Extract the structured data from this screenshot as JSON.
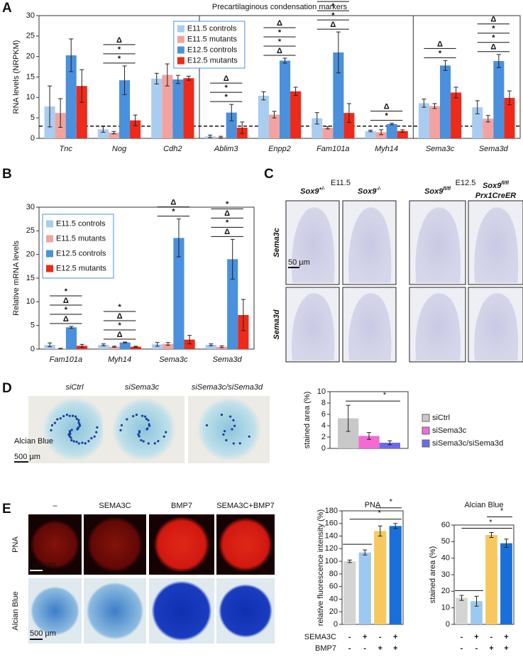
{
  "chart_data": [
    {
      "type": "bar",
      "title": "Precartilaginous condensation markers",
      "y_label": "RNA levels (NRPKM)",
      "categories": [
        "Tnc",
        "Nog",
        "Cdh2",
        "Ablim3",
        "Enpp2",
        "Fam101a",
        "Myh14",
        "Sema3c",
        "Sema3d"
      ],
      "series": [
        {
          "name": "E11.5 controls",
          "color": "#a9cdf0",
          "values": [
            7.8,
            2.2,
            14.6,
            0.5,
            10.4,
            4.9,
            1.8,
            8.6,
            7.6
          ],
          "errors": [
            5,
            0.7,
            1.3,
            0.3,
            1,
            1.4,
            0.2,
            1,
            1.6
          ]
        },
        {
          "name": "E11.5 mutants",
          "color": "#f2a3a0",
          "values": [
            6.2,
            1.4,
            15.5,
            0.3,
            5.8,
            2.6,
            1.5,
            7.9,
            4.8
          ],
          "errors": [
            3.5,
            0.3,
            2.7,
            0.2,
            0.8,
            0.3,
            0.6,
            0.6,
            0.8
          ]
        },
        {
          "name": "E12.5 controls",
          "color": "#4a90dc",
          "values": [
            20.3,
            14.2,
            14.4,
            6.3,
            19,
            21,
            3.5,
            17.8,
            18.9
          ],
          "errors": [
            4,
            3.5,
            1,
            2,
            0.6,
            5,
            0.2,
            1.2,
            1.6
          ]
        },
        {
          "name": "E12.5 mutants",
          "color": "#ee2a1a",
          "values": [
            12.8,
            4.4,
            14.7,
            2.6,
            11.5,
            6.2,
            1.8,
            11.2,
            9.9
          ],
          "errors": [
            4,
            1.3,
            0.5,
            1.4,
            1,
            2.3,
            0.3,
            1.3,
            1.7
          ]
        }
      ],
      "ylim": [
        0,
        30
      ],
      "yticks": [
        0,
        5,
        10,
        15,
        20,
        25,
        30
      ],
      "reference_line": 3,
      "legend": "upper center",
      "significance": [
        [],
        [
          "*",
          "*",
          "Δ"
        ],
        [],
        [
          "*",
          "*",
          "Δ"
        ],
        [
          "Δ",
          "*",
          "*",
          "Δ"
        ],
        [
          "Δ",
          "*",
          "*",
          "Δ"
        ],
        [
          "*",
          "Δ"
        ],
        [
          "*",
          "Δ"
        ],
        [
          "Δ",
          "*",
          "*",
          "Δ"
        ]
      ]
    },
    {
      "type": "bar",
      "y_label": "Relative mRNA levels",
      "categories": [
        "Fam101a",
        "Myh14",
        "Sema3c",
        "Sema3d"
      ],
      "series": [
        {
          "name": "E11.5 controls",
          "color": "#a9cdf0",
          "values": [
            0.9,
            0.9,
            1,
            0.9
          ],
          "errors": [
            0.4,
            0.2,
            0.4,
            0.2
          ]
        },
        {
          "name": "E11.5 mutants",
          "color": "#f2a3a0",
          "values": [
            0.1,
            0.5,
            1.1,
            0.5
          ],
          "errors": [
            0.05,
            0.1,
            0.3,
            0.2
          ]
        },
        {
          "name": "E12.5 controls",
          "color": "#4a90dc",
          "values": [
            4.6,
            1.4,
            23.5,
            19
          ],
          "errors": [
            0.2,
            0.1,
            4,
            4.2
          ]
        },
        {
          "name": "E12.5 mutants",
          "color": "#ee2a1a",
          "values": [
            0.7,
            0.5,
            2,
            7.2
          ],
          "errors": [
            0.3,
            0.1,
            0.9,
            3.3
          ]
        }
      ],
      "ylim": [
        0,
        30
      ],
      "yticks": [
        0,
        5,
        10,
        15,
        20,
        25,
        30
      ],
      "legend": "upper left",
      "significance": [
        [
          "Δ",
          "*",
          "Δ",
          "*"
        ],
        [
          "Δ",
          "*",
          "Δ",
          "*"
        ],
        [
          "*",
          "Δ"
        ],
        [
          "Δ",
          "*",
          "Δ",
          "*"
        ]
      ]
    },
    {
      "type": "bar",
      "y_label": "stained area (%)",
      "categories": [
        null
      ],
      "series": [
        {
          "name": "siCtrl",
          "color": "#c8c8c8",
          "values": [
            5.3
          ],
          "errors": [
            2.3
          ]
        },
        {
          "name": "siSema3c",
          "color": "#f26ad2",
          "values": [
            2.2
          ],
          "errors": [
            0.6
          ]
        },
        {
          "name": "siSema3c/siSema3d",
          "color": "#6a6aee",
          "values": [
            1.0
          ],
          "errors": [
            0.35
          ]
        }
      ],
      "ylim": [
        0,
        10
      ],
      "yticks": [
        0,
        2,
        4,
        6,
        8,
        10
      ],
      "legend": "right",
      "significance": [
        "*"
      ]
    },
    {
      "type": "bar",
      "title": "PNA",
      "y_label": "relative fluorescence intensity (%)",
      "categories": [
        null,
        null,
        null,
        null
      ],
      "values": [
        100,
        114,
        148,
        156
      ],
      "errors": [
        2,
        4,
        8,
        4
      ],
      "colors": [
        "#d4d4d4",
        "#9dc8f0",
        "#f8c860",
        "#1a70d8"
      ],
      "ylim": [
        0,
        180
      ],
      "yticks": [
        0,
        20,
        40,
        60,
        80,
        100,
        120,
        140,
        160,
        180
      ],
      "significance": [
        "*",
        "*"
      ]
    },
    {
      "type": "bar",
      "title": "Alcian Blue",
      "y_label": "stained area (%)",
      "categories": [
        null,
        null,
        null,
        null
      ],
      "values": [
        16,
        14,
        54,
        49
      ],
      "errors": [
        1.5,
        3,
        1.5,
        2.5
      ],
      "colors": [
        "#d4d4d4",
        "#9dc8f0",
        "#f8c860",
        "#1a70d8"
      ],
      "ylim": [
        0,
        60
      ],
      "yticks": [
        0,
        10,
        20,
        30,
        40,
        50,
        60
      ],
      "significance": [
        "*",
        "*"
      ]
    }
  ],
  "figure": {
    "panel_letters": [
      "A",
      "B",
      "C",
      "D",
      "E"
    ],
    "panel_c": {
      "stages": [
        "E11.5",
        "E12.5"
      ],
      "genotypes": [
        {
          "gene": "Sox9",
          "allele": "+/-"
        },
        {
          "gene": "Sox9",
          "allele": "-/-"
        },
        {
          "gene": "Sox9",
          "allele": "fl/fl"
        },
        {
          "gene": "Sox9",
          "allele": "fl/fl",
          "driver": "Prx1CreER"
        }
      ],
      "rows": [
        "Sema3c",
        "Sema3d"
      ],
      "scale_bar": "50 µm"
    },
    "panel_d": {
      "conditions": [
        "siCtrl",
        "siSema3c",
        "siSema3c/siSema3d"
      ],
      "row_label": "Alcian Blue",
      "scale_bar": "500 µm"
    },
    "panel_e": {
      "conditions": [
        "–",
        "SEMA3C",
        "BMP7",
        "SEMA3C+BMP7"
      ],
      "rows": [
        "PNA",
        "Alcian Blue"
      ],
      "scale_bars": [
        "500 µm",
        "500 µm"
      ],
      "treatments": [
        {
          "label": "SEMA3C",
          "signs": [
            "-",
            "+",
            "-",
            "+"
          ]
        },
        {
          "label": "BMP7",
          "signs": [
            "-",
            "-",
            "+",
            "+"
          ]
        }
      ]
    }
  }
}
